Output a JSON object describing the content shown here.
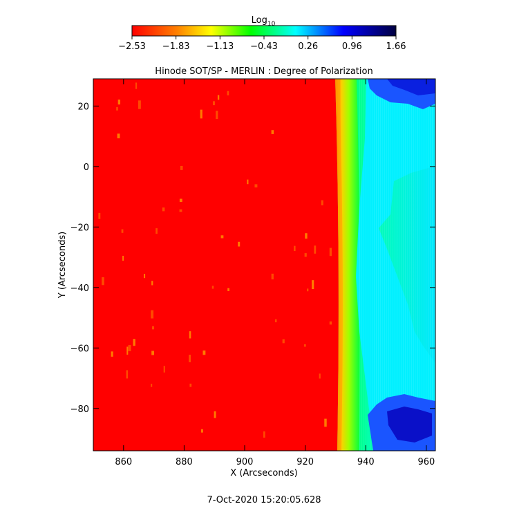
{
  "chart_data": {
    "type": "heatmap",
    "title": "Hinode SOT/SP - MERLIN : Degree of Polarization",
    "xlabel": "X (Arcseconds)",
    "ylabel": "Y (Arcseconds)",
    "xlim": [
      850,
      963
    ],
    "ylim": [
      -94,
      29
    ],
    "x_ticks": [
      860,
      880,
      900,
      920,
      940,
      960
    ],
    "y_ticks": [
      20,
      0,
      -20,
      -40,
      -60,
      -80
    ],
    "colorbar": {
      "label_base": "Log",
      "label_sub": "10",
      "range": [
        -2.53,
        1.66
      ],
      "ticks": [
        "-2.53",
        "-1.83",
        "-1.13",
        "-0.43",
        "0.26",
        "0.96",
        "1.66"
      ],
      "colormap": [
        "#ff0000",
        "#ff8000",
        "#ffff00",
        "#00ff00",
        "#00ffff",
        "#0000ff",
        "#000040"
      ]
    },
    "regions": {
      "disk_value": -2.53,
      "limb_x": 931,
      "limb_value": -1.6,
      "offlimb_inner_value": -0.9,
      "offlimb_mid_value": -0.25,
      "offlimb_outer_value": 0.7
    },
    "grid": false
  },
  "footer": {
    "timestamp": "7-Oct-2020 15:20:05.628"
  }
}
